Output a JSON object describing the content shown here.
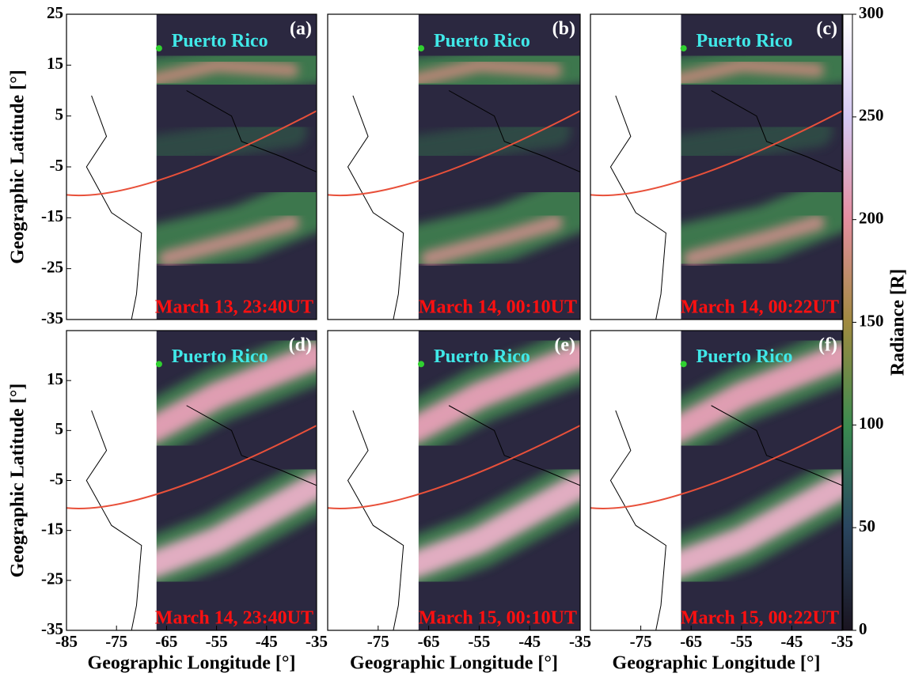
{
  "chart_data": [
    {
      "type": "map",
      "panel": "(a)",
      "annotation": "Puerto Rico",
      "timestamp": "March 13, 23:40UT",
      "xlim": [
        -85,
        -35
      ],
      "ylim": [
        -35,
        25
      ],
      "yticks": [
        25,
        15,
        5,
        -5,
        -15,
        -25,
        -35
      ],
      "ylabel": "Geographic Latitude [°]"
    },
    {
      "type": "map",
      "panel": "(b)",
      "annotation": "Puerto Rico",
      "timestamp": "March 14, 00:10UT",
      "xlim": [
        -85,
        -35
      ],
      "ylim": [
        -35,
        25
      ]
    },
    {
      "type": "map",
      "panel": "(c)",
      "annotation": "Puerto Rico",
      "timestamp": "March 14, 00:22UT",
      "xlim": [
        -85,
        -35
      ],
      "ylim": [
        -35,
        25
      ]
    },
    {
      "type": "map",
      "panel": "(d)",
      "annotation": "Puerto Rico",
      "timestamp": "March 14, 23:40UT",
      "xlim": [
        -85,
        -35
      ],
      "ylim": [
        -35,
        25
      ],
      "yticks": [
        15,
        5,
        -5,
        -15,
        -25,
        -35
      ],
      "xticks": [
        -85,
        -75,
        -65,
        -55,
        -45,
        -35
      ],
      "ylabel": "Geographic Latitude [°]",
      "xlabel": "Geographic Longitude [°]"
    },
    {
      "type": "map",
      "panel": "(e)",
      "annotation": "Puerto Rico",
      "timestamp": "March 15, 00:10UT",
      "xlim": [
        -85,
        -35
      ],
      "ylim": [
        -35,
        25
      ],
      "xticks": [
        -75,
        -65,
        -55,
        -45,
        -35
      ],
      "xlabel": "Geographic Longitude [°]"
    },
    {
      "type": "map",
      "panel": "(f)",
      "annotation": "Puerto Rico",
      "timestamp": "March 15, 00:22UT",
      "xlim": [
        -85,
        -35
      ],
      "ylim": [
        -35,
        25
      ],
      "xticks": [
        -75,
        -65,
        -55,
        -45,
        -35
      ],
      "xlabel": "Geographic Longitude [°]"
    },
    {
      "type": "colorbar",
      "label": "Radiance [R]",
      "ylim": [
        0,
        300
      ],
      "yticks": [
        0,
        50,
        100,
        150,
        200,
        250,
        300
      ]
    }
  ]
}
